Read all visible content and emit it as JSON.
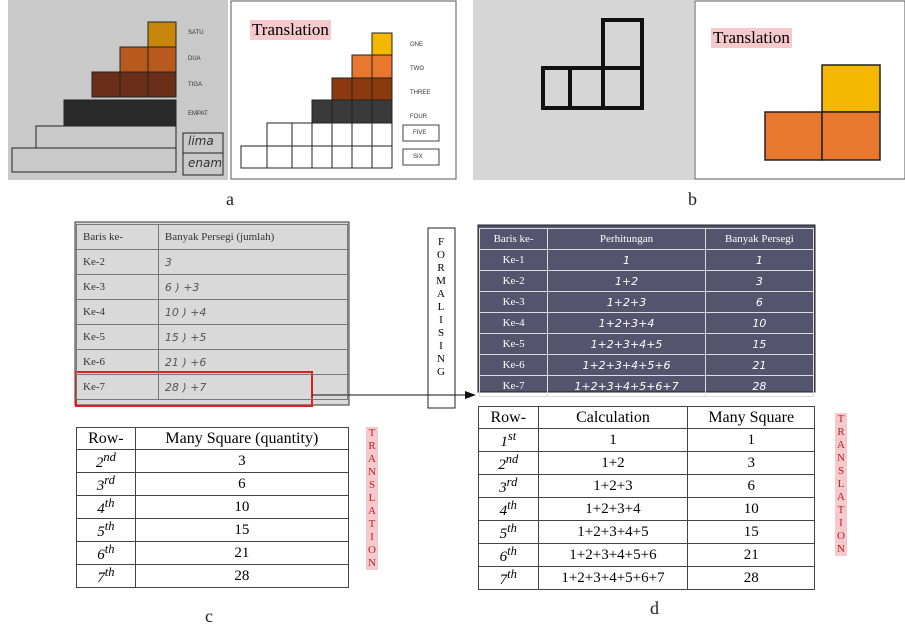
{
  "panel_a": {
    "label": "a",
    "photo_labels": [
      "SATU",
      "DUA",
      "TIGA",
      "EMPAT",
      "lima",
      "enam"
    ],
    "translation_title": "Translation",
    "translation_labels": [
      "ONE",
      "TWO",
      "THREE",
      "FOUR",
      "FIVE",
      "SIX"
    ]
  },
  "panel_b": {
    "label": "b",
    "translation_title": "Translation"
  },
  "formalising": "FORMALISING",
  "panel_c": {
    "label": "c",
    "photo_table": {
      "header": [
        "Baris ke-",
        "Banyak Persegi (jumlah)"
      ],
      "rows": [
        [
          "Ke-2",
          "3"
        ],
        [
          "Ke-3",
          "6 ) +3"
        ],
        [
          "Ke-4",
          "10 ) +4"
        ],
        [
          "Ke-5",
          "15 ) +5"
        ],
        [
          "Ke-6",
          "21 ) +6"
        ],
        [
          "Ke-7",
          "28 ) +7"
        ]
      ]
    },
    "table": {
      "header": [
        "Row-",
        "Many Square (quantity)"
      ],
      "rows": [
        [
          {
            "n": "2",
            "sup": "nd"
          },
          "3"
        ],
        [
          {
            "n": "3",
            "sup": "rd"
          },
          "6"
        ],
        [
          {
            "n": "4",
            "sup": "th"
          },
          "10"
        ],
        [
          {
            "n": "5",
            "sup": "th"
          },
          "15"
        ],
        [
          {
            "n": "6",
            "sup": "th"
          },
          "21"
        ],
        [
          {
            "n": "7",
            "sup": "th"
          },
          "28"
        ]
      ]
    },
    "side_label": "TRANSLATION"
  },
  "panel_d": {
    "label": "d",
    "photo_table": {
      "header": [
        "Baris ke-",
        "Perhitungan",
        "Banyak Persegi"
      ],
      "rows": [
        [
          "Ke-1",
          "1",
          "1"
        ],
        [
          "Ke-2",
          "1+2",
          "3"
        ],
        [
          "Ke-3",
          "1+2+3",
          "6"
        ],
        [
          "Ke-4",
          "1+2+3+4",
          "10"
        ],
        [
          "Ke-5",
          "1+2+3+4+5",
          "15"
        ],
        [
          "Ke-6",
          "1+2+3+4+5+6",
          "21"
        ],
        [
          "Ke-7",
          "1+2+3+4+5+6+7",
          "28"
        ]
      ]
    },
    "table": {
      "header": [
        "Row-",
        "Calculation",
        "Many Square"
      ],
      "rows": [
        [
          {
            "n": "1",
            "sup": "st"
          },
          "1",
          "1"
        ],
        [
          {
            "n": "2",
            "sup": "nd"
          },
          "1+2",
          "3"
        ],
        [
          {
            "n": "3",
            "sup": "rd"
          },
          "1+2+3",
          "6"
        ],
        [
          {
            "n": "4",
            "sup": "th"
          },
          "1+2+3+4",
          "10"
        ],
        [
          {
            "n": "5",
            "sup": "th"
          },
          "1+2+3+4+5",
          "15"
        ],
        [
          {
            "n": "6",
            "sup": "th"
          },
          "1+2+3+4+5+6",
          "21"
        ],
        [
          {
            "n": "7",
            "sup": "th"
          },
          "1+2+3+4+5+6+7",
          "28"
        ]
      ]
    },
    "side_label": "TRANSLATION"
  }
}
